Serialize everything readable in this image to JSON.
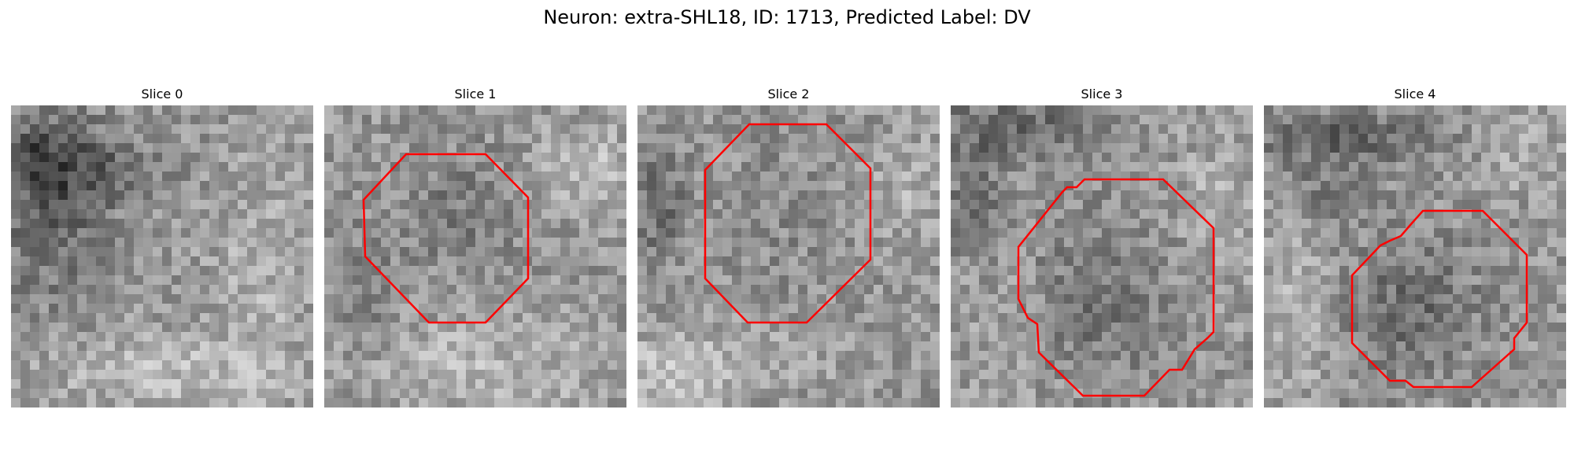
{
  "figure": {
    "title": "Neuron: extra-SHL18, ID: 1713, Predicted Label: DV"
  },
  "panels": [
    {
      "title": "Slice 0",
      "has_contour": false
    },
    {
      "title": "Slice 1",
      "has_contour": true
    },
    {
      "title": "Slice 2",
      "has_contour": true
    },
    {
      "title": "Slice 3",
      "has_contour": true
    },
    {
      "title": "Slice 4",
      "has_contour": true
    }
  ],
  "colors": {
    "contour": "#ff0000",
    "background": "#ffffff"
  }
}
